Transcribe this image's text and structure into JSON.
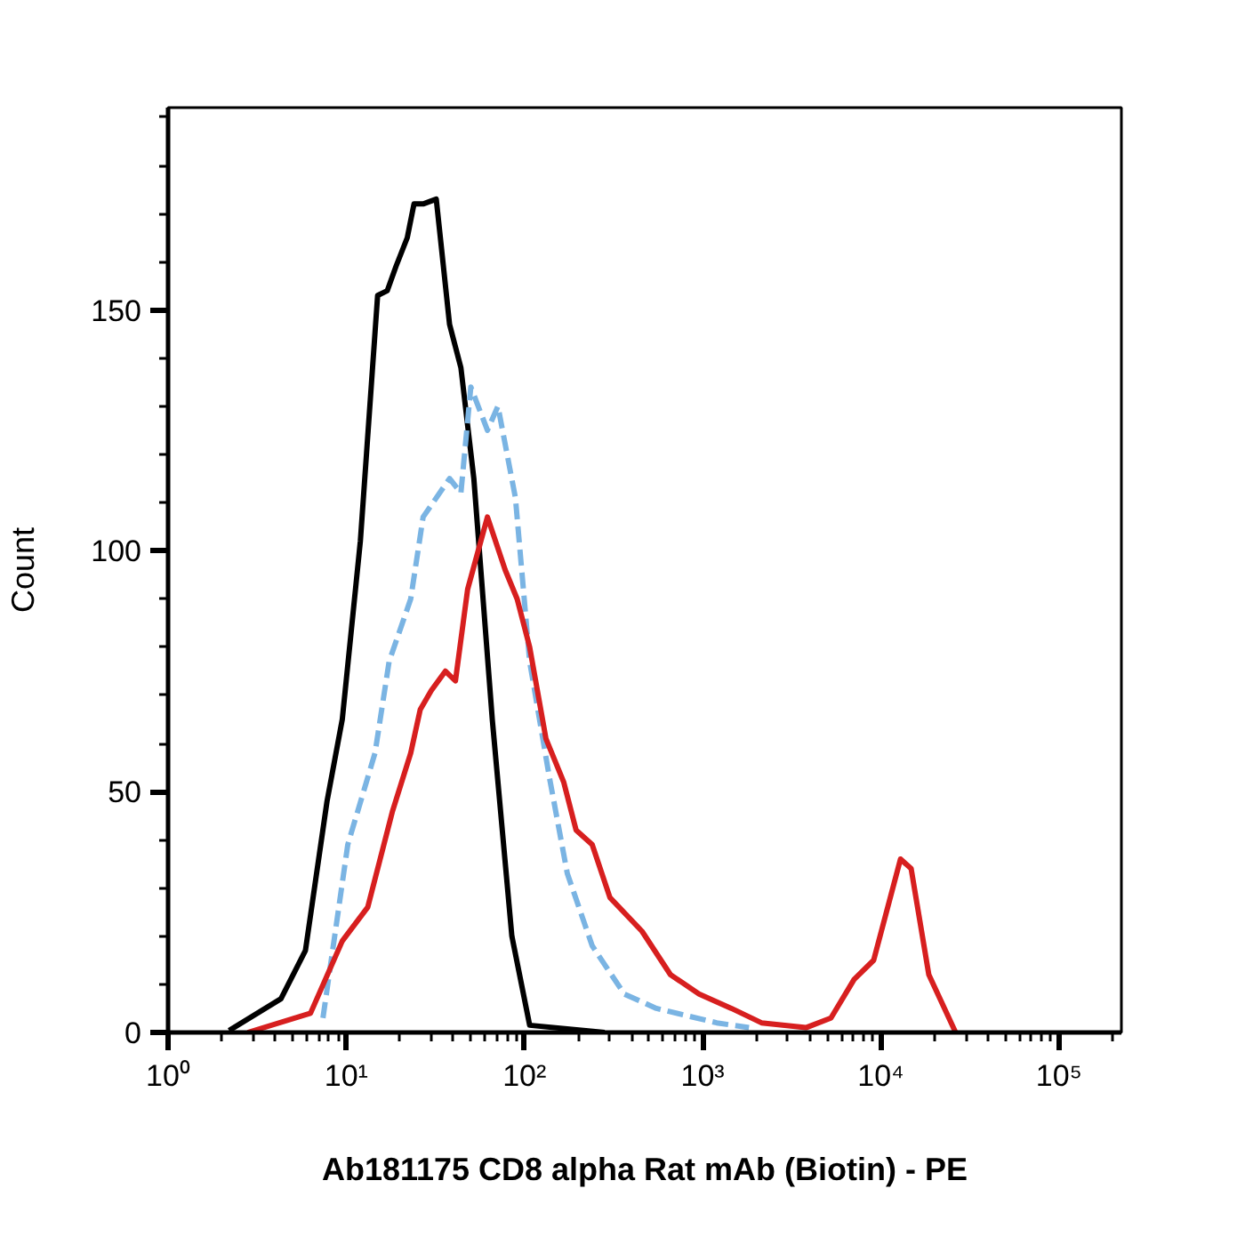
{
  "chart_data": {
    "type": "line",
    "xlabel": "Ab181175 CD8 alpha Rat mAb (Biotin) - PE",
    "ylabel": "Count",
    "log": "x",
    "grid": false,
    "marker": "none",
    "xlim": [
      1,
      224000
    ],
    "ylim": [
      0,
      192
    ],
    "xticks": [
      {
        "value": 1,
        "label": "10⁰"
      },
      {
        "value": 10,
        "label": "10¹"
      },
      {
        "value": 100,
        "label": "10²"
      },
      {
        "value": 1000,
        "label": "10³"
      },
      {
        "value": 10000,
        "label": "10⁴"
      },
      {
        "value": 100000,
        "label": "10⁵"
      }
    ],
    "yticks": [
      0,
      50,
      100,
      150
    ],
    "series": [
      {
        "color": "#000000",
        "line_style": "solid",
        "x": [
          2.2,
          4.3,
          5.9,
          7.8,
          9.5,
          12,
          15,
          17,
          19,
          22,
          24,
          27,
          32,
          38,
          44,
          52,
          66,
          85,
          107,
          282
        ],
        "values": [
          0.4,
          7,
          17,
          48,
          65,
          102,
          153,
          154,
          159,
          165,
          172,
          172,
          173,
          147,
          138,
          115,
          65,
          20,
          1.5,
          0
        ]
      },
      {
        "color": "#7ab4e3",
        "line_style": "dashed",
        "x": [
          7.4,
          10.2,
          14.5,
          17.4,
          23,
          27,
          38,
          44,
          50,
          62,
          71,
          89,
          107,
          138,
          174,
          240,
          363,
          550,
          1200,
          1820
        ],
        "values": [
          3,
          39,
          58,
          77,
          90,
          107,
          115,
          112,
          134,
          125,
          130,
          111,
          77,
          53,
          33,
          18,
          8,
          5,
          2,
          1
        ]
      },
      {
        "color": "#d71f1f",
        "line_style": "solid",
        "x": [
          2.8,
          6.3,
          9.5,
          13.2,
          18.2,
          23,
          26,
          30,
          36,
          41,
          48,
          62,
          78,
          91,
          107,
          132,
          166,
          195,
          240,
          302,
          457,
          660,
          955,
          1450,
          2140,
          3800,
          5250,
          7080,
          9120,
          12900,
          14800,
          18600,
          26300
        ],
        "values": [
          0,
          4,
          19,
          26,
          46,
          58,
          67,
          71,
          75,
          73,
          92,
          107,
          96,
          90,
          80,
          61,
          52,
          42,
          39,
          28,
          21,
          12,
          8,
          5,
          2,
          1,
          3,
          11,
          15,
          36,
          34,
          12,
          0
        ]
      }
    ]
  }
}
